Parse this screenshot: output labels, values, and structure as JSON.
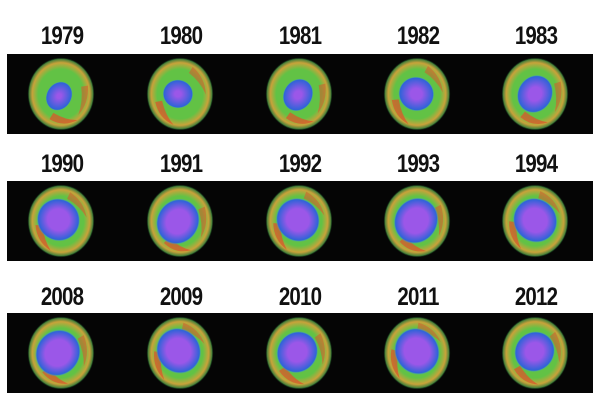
{
  "rows": [
    {
      "years": [
        "1979",
        "1980",
        "1981",
        "1982",
        "1983"
      ],
      "holes": [
        0.2,
        0.25,
        0.3,
        0.4,
        0.45
      ]
    },
    {
      "years": [
        "1990",
        "1991",
        "1992",
        "1993",
        "1994"
      ],
      "holes": [
        0.62,
        0.66,
        0.64,
        0.68,
        0.66
      ]
    },
    {
      "years": [
        "2008",
        "2009",
        "2010",
        "2011",
        "2012"
      ],
      "holes": [
        0.7,
        0.68,
        0.58,
        0.7,
        0.55
      ]
    }
  ],
  "colors": {
    "background": "#ffffff",
    "strip": "#050505",
    "ozone_high": "#d9572b",
    "ozone_mid": "#62c245",
    "ozone_low": "#2f63d8",
    "ozone_hole": "#9b57e8"
  }
}
